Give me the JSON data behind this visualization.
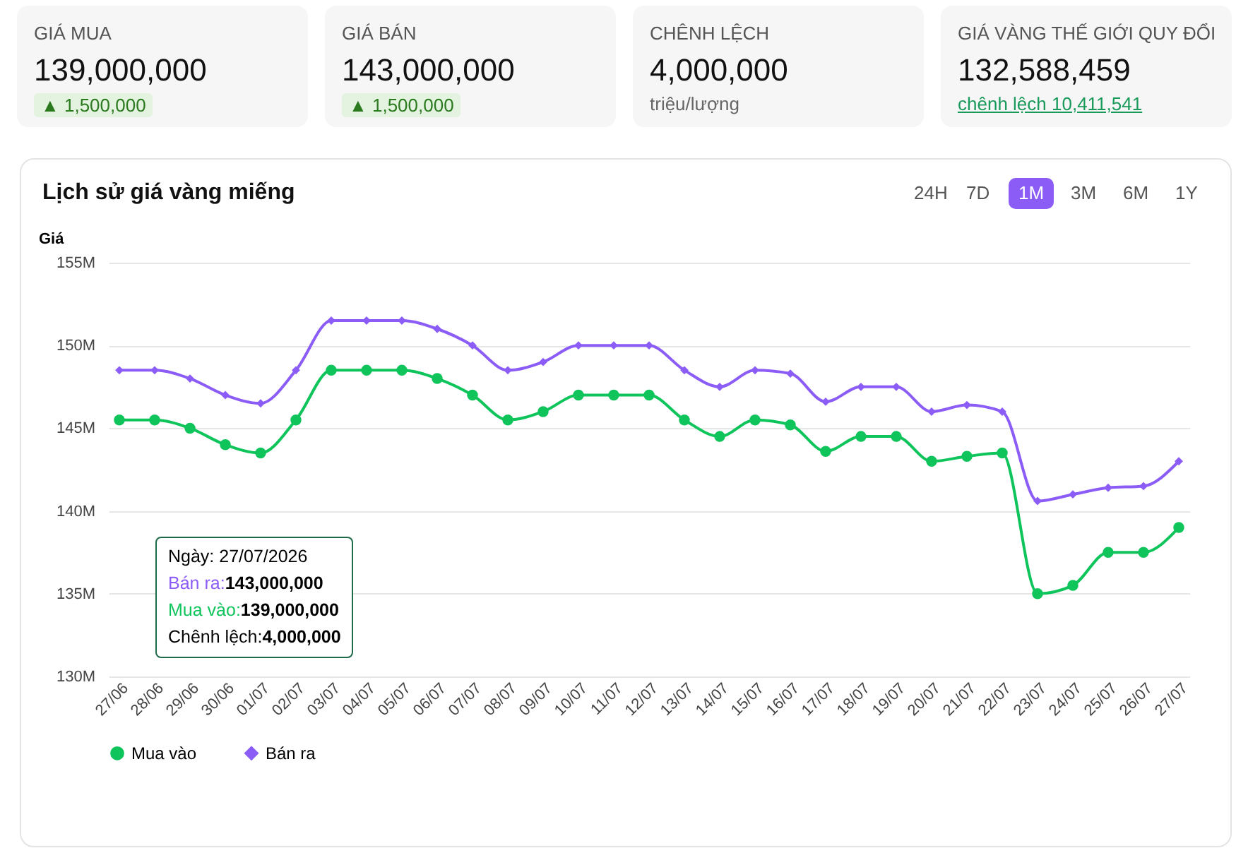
{
  "chart_data": {
    "type": "line",
    "title": "Lịch sử giá vàng miếng",
    "ylabel": "Giá",
    "categories": [
      "27/06",
      "28/06",
      "29/06",
      "30/06",
      "01/07",
      "02/07",
      "03/07",
      "04/07",
      "05/07",
      "06/07",
      "07/07",
      "08/07",
      "09/07",
      "10/07",
      "11/07",
      "12/07",
      "13/07",
      "14/07",
      "15/07",
      "16/07",
      "17/07",
      "18/07",
      "19/07",
      "20/07",
      "21/07",
      "22/07",
      "23/07",
      "24/07",
      "25/07",
      "26/07",
      "27/07"
    ],
    "series": [
      {
        "name": "Mua vào",
        "color": "#10c45c",
        "marker": "circle",
        "values": [
          145.5,
          145.5,
          145,
          144,
          143.5,
          145.5,
          148.5,
          148.5,
          148.5,
          148,
          147,
          145.5,
          146,
          147,
          147,
          147,
          145.5,
          144.5,
          145.5,
          145.2,
          143.6,
          144.5,
          144.5,
          143,
          143.3,
          143.5,
          135,
          135.5,
          137.5,
          137.5,
          139
        ]
      },
      {
        "name": "Bán ra",
        "color": "#8b5cf6",
        "marker": "diamond",
        "values": [
          148.5,
          148.5,
          148,
          147,
          146.5,
          148.5,
          151.5,
          151.5,
          151.5,
          151,
          150,
          148.5,
          149,
          150,
          150,
          150,
          148.5,
          147.5,
          148.5,
          148.3,
          146.6,
          147.5,
          147.5,
          146,
          146.4,
          146,
          140.6,
          141,
          141.4,
          141.5,
          143
        ]
      }
    ],
    "ylim": [
      130,
      155
    ],
    "yticks": [
      {
        "value": 130,
        "label": "130M"
      },
      {
        "value": 135,
        "label": "135M"
      },
      {
        "value": 140,
        "label": "140M"
      },
      {
        "value": 145,
        "label": "145M"
      },
      {
        "value": 150,
        "label": "150M"
      },
      {
        "value": 155,
        "label": "155M"
      }
    ],
    "grid": "y",
    "legend": "bottom",
    "line_style": "solid",
    "annotations": [
      "GIÁ MUA",
      "139,000,000",
      "▲ 1,500,000",
      "GIÁ BÁN",
      "143,000,000",
      "▲ 1,500,000",
      "CHÊNH LỆCH",
      "4,000,000",
      "triệu/lượng",
      "GIÁ VÀNG THẾ GIỚI QUY ĐỔI",
      "132,588,459",
      "chênh lệch 10,411,541",
      "24H",
      "7D",
      "1M",
      "3M",
      "6M",
      "1Y",
      "Ngày: 27/07/2026",
      "Bán ra:143,000,000",
      "Mua vào:139,000,000",
      "Chênh lệch:4,000,000"
    ]
  }
}
